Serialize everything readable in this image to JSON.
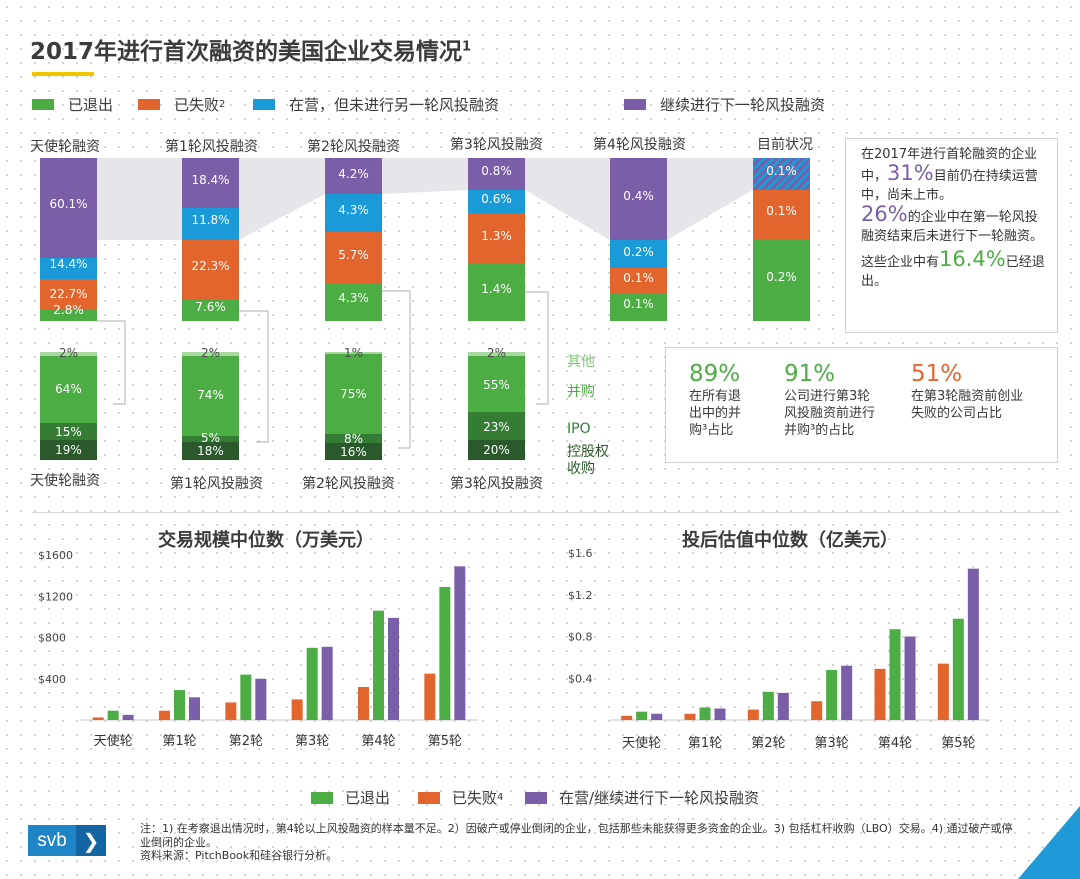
{
  "title": "2017年进行首次融资的美国企业交易情况",
  "title_sup": "1",
  "legend_top": [
    {
      "label": "已退出",
      "sup": "",
      "color": "#4cad44"
    },
    {
      "label": "已失败",
      "sup": "2",
      "color": "#e3652e"
    },
    {
      "label": "在营，但未进行另一轮风投融资",
      "sup": "",
      "color": "#1b9ad8"
    },
    {
      "label": "继续进行下一轮风投融资",
      "sup": "",
      "color": "#7b5ea8"
    }
  ],
  "colors": {
    "exited": "#4cad44",
    "failed": "#e3652e",
    "operating": "#1b9ad8",
    "continued": "#7b5ea8",
    "ma_light": "#a8d79f",
    "ma": "#4cad44",
    "ipo": "#357d35",
    "buyout": "#2a5a2b"
  },
  "funnel": {
    "stages": [
      "天使轮融资",
      "第1轮风投融资",
      "第2轮风投融资",
      "第3轮风投融资",
      "第4轮风投融资",
      "目前状况"
    ],
    "bars": [
      {
        "continued": "60.1%",
        "operating": "14.4%",
        "failed": "22.7%",
        "exited": "2.8%"
      },
      {
        "continued": "18.4%",
        "operating": "11.8%",
        "failed": "22.3%",
        "exited": "7.6%"
      },
      {
        "continued": "4.2%",
        "operating": "4.3%",
        "failed": "5.7%",
        "exited": "4.3%"
      },
      {
        "continued": "0.8%",
        "operating": "0.6%",
        "failed": "1.3%",
        "exited": "1.4%"
      },
      {
        "continued": "0.4%",
        "operating": "0.2%",
        "failed": "0.1%",
        "exited": "0.1%"
      },
      {
        "continued": "0.1%",
        "operating": "",
        "failed": "0.1%",
        "exited": "0.2%"
      }
    ]
  },
  "exits": {
    "stages": [
      "天使轮融资",
      "第1轮风投融资",
      "第2轮风投融资",
      "第3轮风投融资"
    ],
    "bars": [
      {
        "other": "2%",
        "ma": "64%",
        "ipo": "15%",
        "buyout": "19%"
      },
      {
        "other": "2%",
        "ma": "74%",
        "ipo": "5%",
        "buyout": "18%"
      },
      {
        "other": "1%",
        "ma": "75%",
        "ipo": "8%",
        "buyout": "16%"
      },
      {
        "other": "2%",
        "ma": "55%",
        "ipo": "23%",
        "buyout": "20%"
      }
    ],
    "labels": {
      "other": "其他",
      "ma": "并购",
      "ipo": "IPO",
      "buyout": "控股权\n收购"
    }
  },
  "sidebox": {
    "p1a": "在2017年进行首轮融资的企业中，",
    "p1num": "31%",
    "p1b": "目前仍在持续运营中，尚未上市。",
    "p2num": "26%",
    "p2b": "的企业中在第一轮风投融资结束后未进行下一轮融资。",
    "p3a": "这些企业中有",
    "p3num": "16.4%",
    "p3b": "已经退出。"
  },
  "stats": [
    {
      "num": "89%",
      "text": "在所有退\n出中的并\n购³占比"
    },
    {
      "num": "91%",
      "text": "公司进行第3轮\n风投融资前进行\n并购³的占比"
    },
    {
      "num": "51%",
      "text": "在第3轮融资前创业\n失败的公司占比"
    }
  ],
  "chart_data": [
    {
      "type": "bar",
      "title": "交易规模中位数（万美元）",
      "categories": [
        "天使轮",
        "第1轮",
        "第2轮",
        "第3轮",
        "第4轮",
        "第5轮"
      ],
      "series": [
        {
          "name": "已失败",
          "values": [
            25,
            90,
            170,
            200,
            320,
            450
          ]
        },
        {
          "name": "已退出",
          "values": [
            90,
            290,
            440,
            700,
            1060,
            1290
          ]
        },
        {
          "name": "在营/继续进行下一轮风投融资",
          "values": [
            50,
            220,
            400,
            710,
            990,
            1490
          ]
        }
      ],
      "yticks": [
        "$400",
        "$800",
        "$1200",
        "$1600"
      ],
      "ylim": [
        0,
        1600
      ]
    },
    {
      "type": "bar",
      "title": "投后估值中位数（亿美元）",
      "categories": [
        "天使轮",
        "第1轮",
        "第2轮",
        "第3轮",
        "第4轮",
        "第5轮"
      ],
      "series": [
        {
          "name": "已失败",
          "values": [
            0.04,
            0.06,
            0.1,
            0.18,
            0.49,
            0.54
          ]
        },
        {
          "name": "已退出",
          "values": [
            0.08,
            0.12,
            0.27,
            0.48,
            0.87,
            0.97
          ]
        },
        {
          "name": "在营/继续进行下一轮风投融资",
          "values": [
            0.06,
            0.11,
            0.26,
            0.52,
            0.8,
            1.45
          ]
        }
      ],
      "yticks": [
        "$0.4",
        "$0.8",
        "$1.2",
        "$1.6"
      ],
      "ylim": [
        0,
        1.6
      ]
    }
  ],
  "legend_bottom": [
    {
      "label": "已退出",
      "sup": "",
      "color": "#4cad44"
    },
    {
      "label": "已失败",
      "sup": "4",
      "color": "#e3652e"
    },
    {
      "label": "在营/继续进行下一轮风投融资",
      "sup": "",
      "color": "#7b5ea8"
    }
  ],
  "notes": {
    "line1": "注：1) 在考察退出情况时，第4轮以上风投融资的样本量不足。2）因破产或停业倒闭的企业，包括那些未能获得更多资金的企业。3) 包括杠杆收购（LBO）交易。4) 通过破产或停业倒闭的企业。",
    "line2": "资料来源：PitchBook和硅谷银行分析。"
  },
  "logo": {
    "text": "svb",
    "chevron": "❯"
  }
}
